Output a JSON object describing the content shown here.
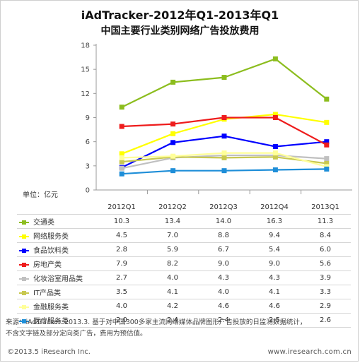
{
  "title": "iAdTracker-2012年Q1-2013年Q1",
  "subtitle": "中国主要行业类别网络广告投放费用",
  "unit_label": "单位：亿元",
  "footnote_line1": "来源：iAdTracker. 2013.3. 基于对中国300多家主流网络媒体品牌图形广告投放的日监测数据统计，",
  "footnote_line2": "不含文字链及部分定向类广告，费用为预估值。",
  "copyright": "©2013.5 iResearch Inc.",
  "website": "www.iresearch.com.cn",
  "chart_data": {
    "type": "line",
    "title": "中国主要行业类别网络广告投放费用",
    "categories": [
      "2012Q1",
      "2012Q2",
      "2012Q3",
      "2012Q4",
      "2013Q1"
    ],
    "ylim": [
      0,
      18
    ],
    "yticks": [
      0,
      3,
      6,
      9,
      12,
      15,
      18
    ],
    "ylabel": "单位：亿元",
    "grid": false,
    "series": [
      {
        "name": "交通类",
        "color": "#8cbd1e",
        "values": [
          10.3,
          13.4,
          14.0,
          16.3,
          11.3
        ]
      },
      {
        "name": "网络服务类",
        "color": "#ffff00",
        "values": [
          4.5,
          7.0,
          8.8,
          9.4,
          8.4
        ]
      },
      {
        "name": "食品饮料类",
        "color": "#0000ff",
        "values": [
          2.8,
          5.9,
          6.7,
          5.4,
          6.0
        ]
      },
      {
        "name": "房地产类",
        "color": "#ee1c1c",
        "values": [
          7.9,
          8.2,
          9.0,
          9.0,
          5.6
        ]
      },
      {
        "name": "化妆浴室用品类",
        "color": "#c0c0c0",
        "values": [
          2.7,
          4.0,
          4.3,
          4.3,
          3.9
        ]
      },
      {
        "name": "IT产品类",
        "color": "#c8c850",
        "values": [
          3.5,
          4.1,
          4.0,
          4.1,
          3.3
        ]
      },
      {
        "name": "金融服务类",
        "color": "#ffff99",
        "values": [
          4.0,
          4.2,
          4.6,
          4.6,
          2.9
        ]
      },
      {
        "name": "医疗服务类",
        "color": "#1e8ed8",
        "values": [
          2.0,
          2.4,
          2.4,
          2.5,
          2.6
        ]
      }
    ]
  }
}
